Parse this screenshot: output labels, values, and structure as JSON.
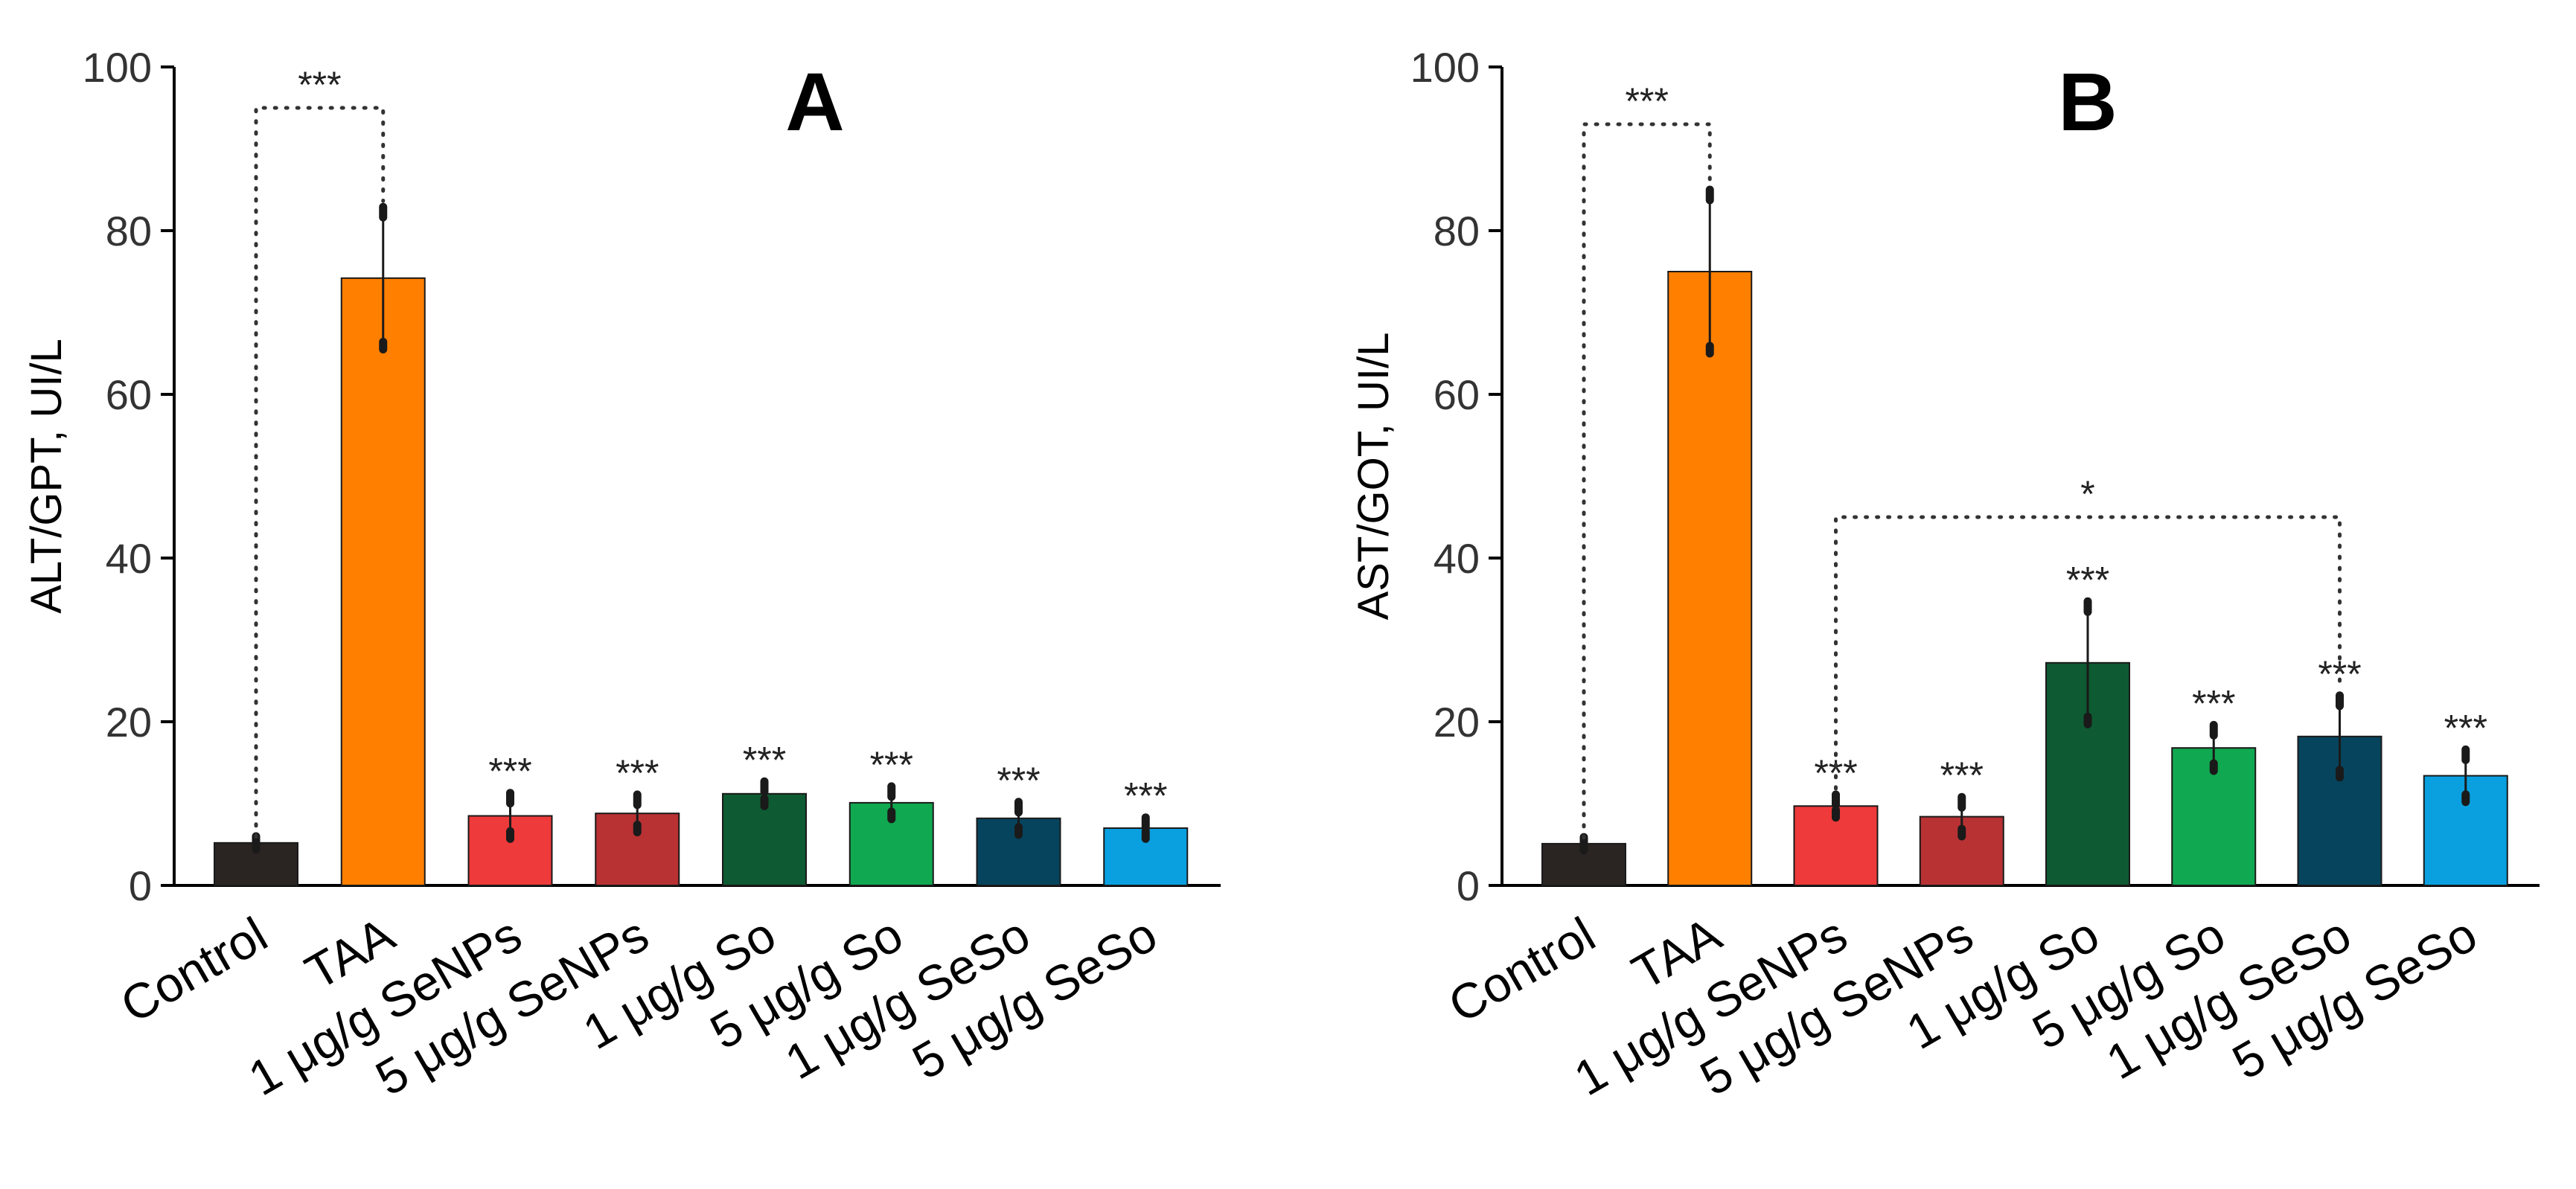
{
  "chart_data": [
    {
      "type": "bar",
      "panel_label": "A",
      "title": "",
      "xlabel": "",
      "ylabel": "ALT/GPT, UI/L",
      "ylim": [
        0,
        100
      ],
      "yticks": [
        0,
        20,
        40,
        60,
        80,
        100
      ],
      "grid": false,
      "categories": [
        "Control",
        "TAA",
        "1 μg/g SeNPs",
        "5 μg/g SeNPs",
        "1 μg/g So",
        "5 μg/g So",
        "1 μg/g SeSo",
        "5 μg/g SeSo"
      ],
      "values": [
        5.2,
        74.2,
        8.5,
        8.8,
        11.2,
        10.1,
        8.2,
        7.0
      ],
      "errors": [
        0.8,
        8.7,
        2.8,
        2.3,
        1.5,
        2.0,
        2.0,
        1.3
      ],
      "colors": [
        "#2a2522",
        "#ff7f00",
        "#ee3a3a",
        "#b83234",
        "#0e5a32",
        "#10a850",
        "#06445e",
        "#0aa0e0"
      ],
      "annotations": [
        "",
        "",
        "***",
        "***",
        "***",
        "***",
        "***",
        "***"
      ],
      "brackets": [
        {
          "from": 0,
          "to": 1,
          "y": 95,
          "label": "***"
        }
      ]
    },
    {
      "type": "bar",
      "panel_label": "B",
      "title": "",
      "xlabel": "",
      "ylabel": "AST/GOT, UI/L",
      "ylim": [
        0,
        100
      ],
      "yticks": [
        0,
        20,
        40,
        60,
        80,
        100
      ],
      "grid": false,
      "categories": [
        "Control",
        "TAA",
        "1 μg/g SeNPs",
        "5 μg/g SeNPs",
        "1 μg/g So",
        "5 μg/g So",
        "1 μg/g SeSo",
        "5 μg/g SeSo"
      ],
      "values": [
        5.1,
        75.0,
        9.7,
        8.4,
        27.2,
        16.8,
        18.2,
        13.4
      ],
      "errors": [
        0.8,
        10.0,
        1.4,
        2.4,
        7.5,
        2.8,
        5.0,
        3.2
      ],
      "colors": [
        "#2a2522",
        "#ff7f00",
        "#ee3a3a",
        "#b83234",
        "#0e5a32",
        "#10a850",
        "#06445e",
        "#0aa0e0"
      ],
      "annotations": [
        "",
        "",
        "***",
        "***",
        "***",
        "***",
        "***",
        "***"
      ],
      "brackets": [
        {
          "from": 0,
          "to": 1,
          "y": 93,
          "label": "***"
        },
        {
          "from": 2,
          "to": 6,
          "y": 45,
          "label": "*"
        }
      ]
    }
  ]
}
